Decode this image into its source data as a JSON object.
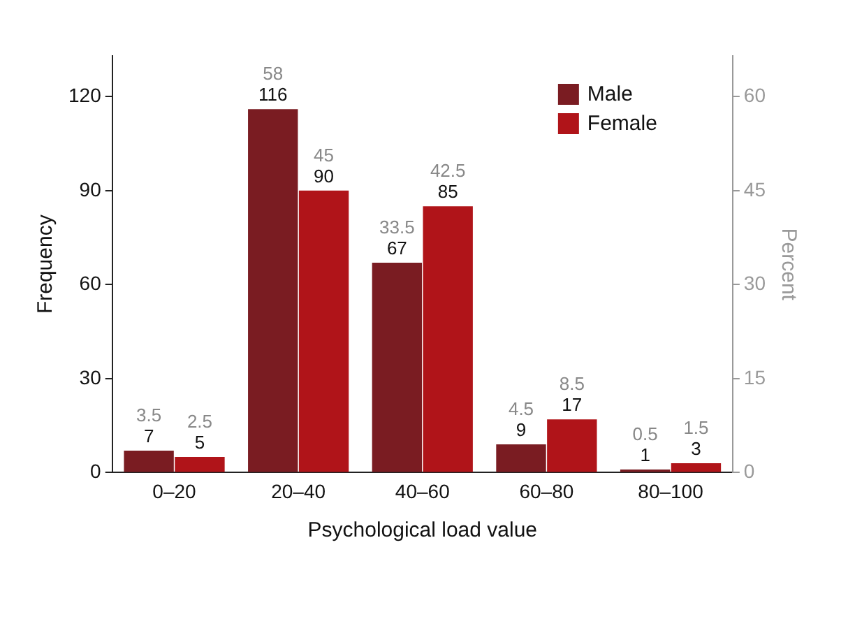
{
  "chart_data": {
    "type": "bar",
    "xlabel": "Psychological load value",
    "ylabel": "Frequency",
    "y2label": "Percent",
    "categories": [
      "0–20",
      "20–40",
      "40–60",
      "60–80",
      "80–100"
    ],
    "series": [
      {
        "name": "Male",
        "color": "#7a1c22",
        "values": [
          7,
          116,
          67,
          9,
          1
        ]
      },
      {
        "name": "Female",
        "color": "#b01419",
        "values": [
          5,
          90,
          85,
          17,
          3
        ]
      }
    ],
    "annotations": [
      {
        "text": "3.5",
        "x": "0–20",
        "y": 7
      },
      {
        "text": "58",
        "x": "20–40",
        "y": 116
      },
      {
        "text": "33.5",
        "x": "40–60",
        "y": 67
      },
      {
        "text": "4.5",
        "x": "60–80",
        "y": 9
      },
      {
        "text": "0.5",
        "x": "80–100",
        "y": 1
      },
      {
        "text": "2.5",
        "x": "0–20",
        "y": 5
      },
      {
        "text": "45",
        "x": "20–40",
        "y": 90
      },
      {
        "text": "42.5",
        "x": "40–60",
        "y": 85
      },
      {
        "text": "8.5",
        "x": "60–80",
        "y": 17
      },
      {
        "text": "1.5",
        "x": "80–100",
        "y": 3
      }
    ],
    "ylim": [
      0,
      133
    ],
    "yticks": [
      0,
      30,
      60,
      90,
      120
    ],
    "y2lim": [
      0,
      66.5
    ],
    "y2ticks": [
      0,
      15,
      30,
      45,
      60
    ],
    "data_labels": true,
    "grid": false,
    "legend": "top right"
  }
}
